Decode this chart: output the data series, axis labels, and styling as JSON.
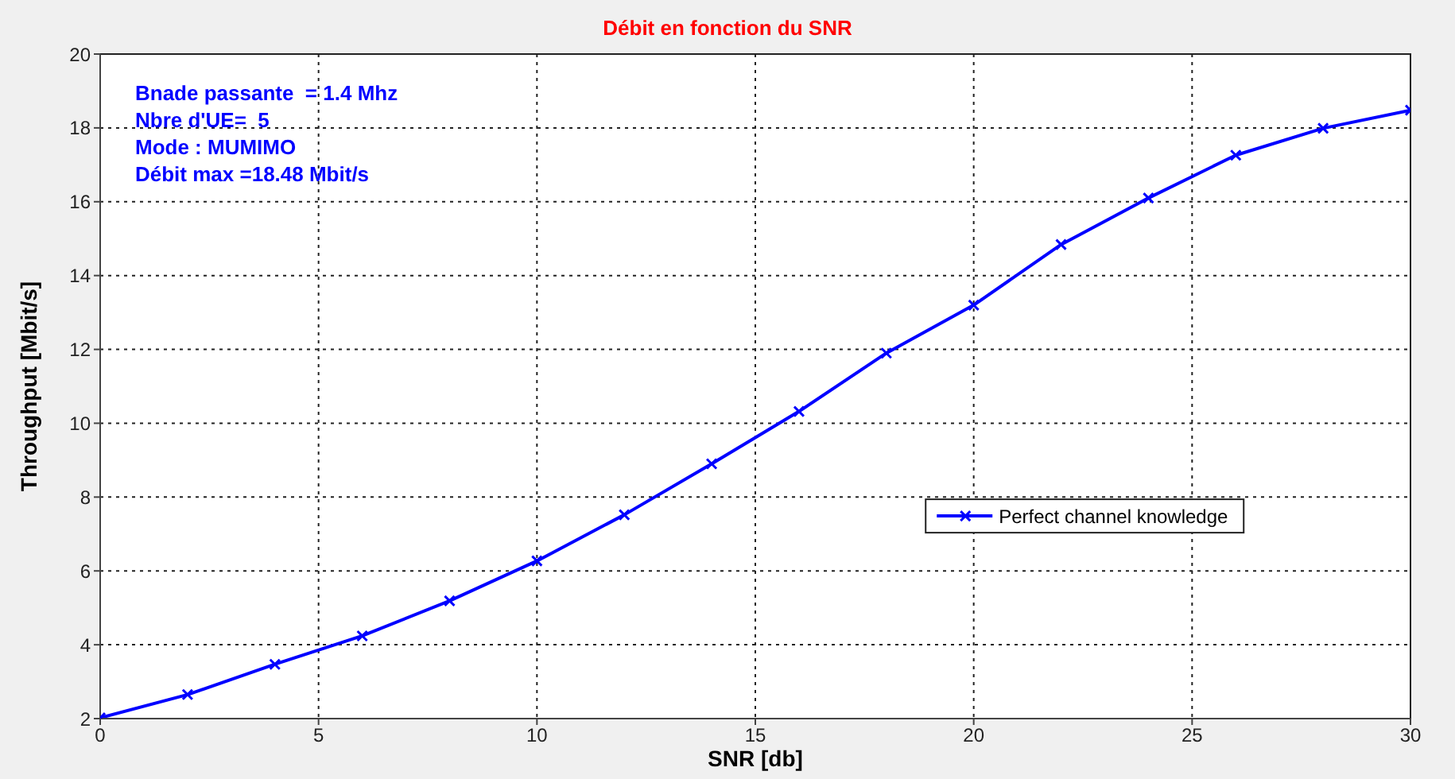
{
  "chart_data": {
    "type": "line",
    "title": "Débit en fonction du SNR",
    "xlabel": "SNR [db]",
    "ylabel": "Throughput [Mbit/s]",
    "x": [
      0,
      2,
      4,
      6,
      8,
      10,
      12,
      14,
      16,
      18,
      20,
      22,
      24,
      26,
      28,
      30
    ],
    "series": [
      {
        "name": "Perfect channel knowledge",
        "color": "#0000ff",
        "values": [
          2.02,
          2.65,
          3.47,
          4.24,
          5.19,
          6.27,
          7.52,
          8.9,
          10.32,
          11.9,
          13.2,
          14.84,
          16.1,
          17.26,
          17.99,
          18.48
        ]
      }
    ],
    "xlim": [
      0,
      30
    ],
    "xticks": [
      0,
      5,
      10,
      15,
      20,
      25,
      30
    ],
    "ylim": [
      2,
      20
    ],
    "yticks": [
      2,
      4,
      6,
      8,
      10,
      12,
      14,
      16,
      18,
      20
    ],
    "annotations": [
      "Bnade passante  = 1.4 Mhz",
      "Nbre d'UE=  5",
      "Mode : MUMIMO",
      "Débit max =18.48 Mbit/s"
    ],
    "grid": true,
    "legend": "right",
    "marker": "cross",
    "line_style": "solid"
  }
}
